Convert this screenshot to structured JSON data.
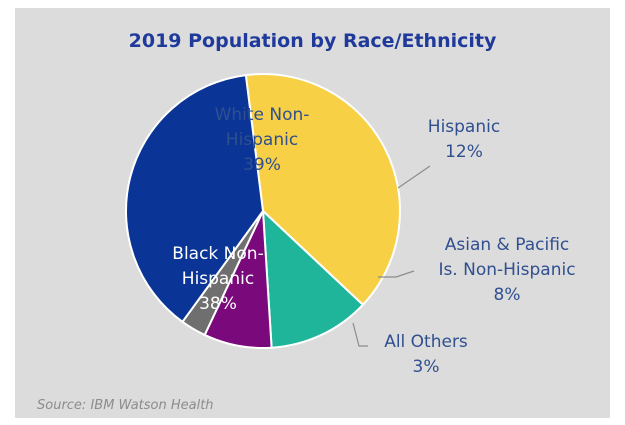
{
  "chart_data": {
    "type": "pie",
    "title": "2019 Population by Race/Ethnicity",
    "source": "Source: IBM Watson Health",
    "slices": [
      {
        "label_lines": [
          "White Non-",
          "Hispanic",
          "39%"
        ],
        "value": 39,
        "color": "#f7d046"
      },
      {
        "label_lines": [
          "Hispanic",
          "12%"
        ],
        "value": 12,
        "color": "#1fb59a"
      },
      {
        "label_lines": [
          "Asian & Pacific",
          "Is. Non-Hispanic",
          "8%"
        ],
        "value": 8,
        "color": "#7a0a7c"
      },
      {
        "label_lines": [
          "All Others",
          "3%"
        ],
        "value": 3,
        "color": "#6f6f6f"
      },
      {
        "label_lines": [
          "Black Non-",
          "Hispanic",
          "38%"
        ],
        "value": 38,
        "color": "#0a3596"
      }
    ]
  }
}
